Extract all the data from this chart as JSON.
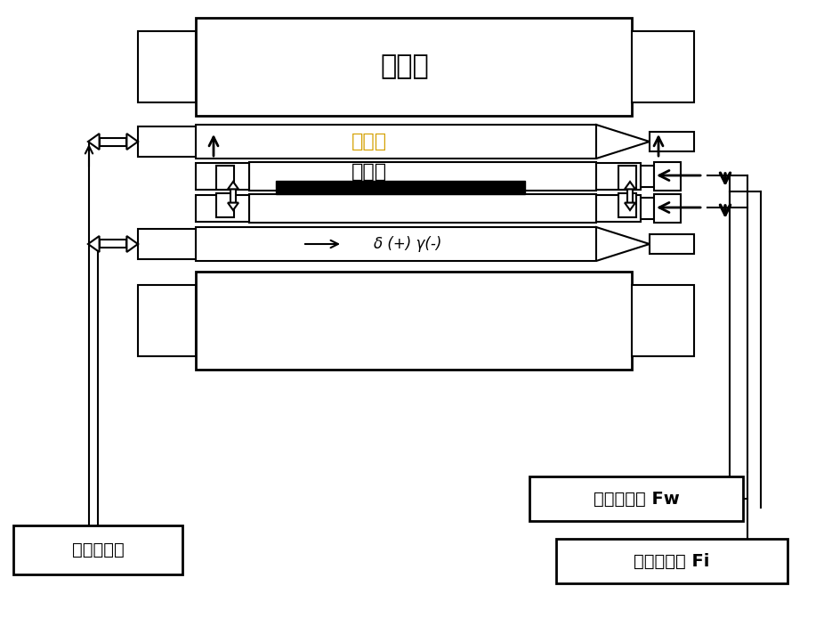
{
  "title": "",
  "bg_color": "#ffffff",
  "line_color": "#000000",
  "text_color_main": "#000000",
  "text_color_zhongjian": "#d4a000",
  "text_color_red_underline": "#ff0000",
  "labels": {
    "backup_roll": "支撑辊",
    "intermediate_roll": "中间辊",
    "work_roll": "工作辊",
    "intermediate_drive": "中间辊对动",
    "work_roll_bending": "工作辊弯辊 Fw",
    "intermediate_roll_bending": "中间辊弯辊 Fi",
    "delta_plus_minus": "δ (+) γ(-)"
  }
}
